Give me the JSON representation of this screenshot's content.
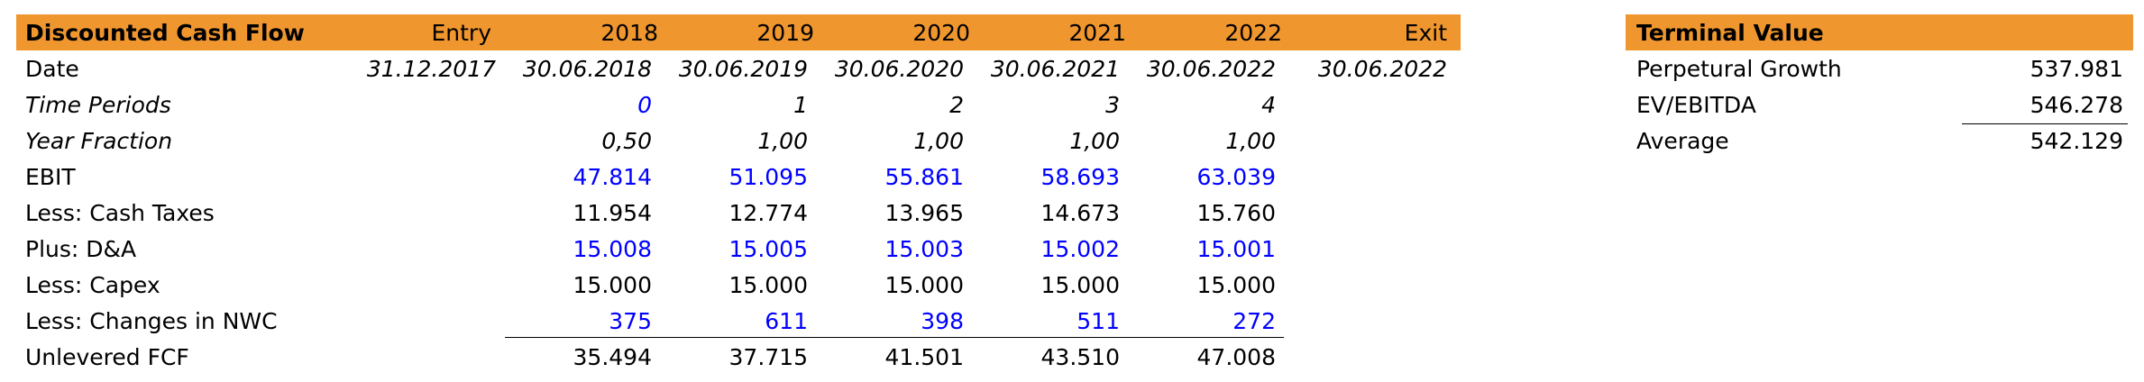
{
  "colors": {
    "header_bg": "#F0962E",
    "input_blue": "#0000FF",
    "text": "#000000"
  },
  "dcf": {
    "header": [
      "Discounted Cash Flow",
      "Entry",
      "2018",
      "2019",
      "2020",
      "2021",
      "2022",
      "Exit"
    ],
    "rows": [
      {
        "label": "Date",
        "label_italic": false,
        "value_italic": true,
        "values": [
          "31.12.2017",
          "30.06.2018",
          "30.06.2019",
          "30.06.2020",
          "30.06.2021",
          "30.06.2022",
          "30.06.2022"
        ],
        "blue": [
          false,
          false,
          false,
          false,
          false,
          false,
          false
        ]
      },
      {
        "label": "Time Periods",
        "label_italic": true,
        "value_italic": true,
        "values": [
          "",
          "0",
          "1",
          "2",
          "3",
          "4",
          ""
        ],
        "blue": [
          false,
          true,
          false,
          false,
          false,
          false,
          false
        ]
      },
      {
        "label": "Year Fraction",
        "label_italic": true,
        "value_italic": true,
        "values": [
          "",
          "0,50",
          "1,00",
          "1,00",
          "1,00",
          "1,00",
          ""
        ],
        "blue": [
          false,
          false,
          false,
          false,
          false,
          false,
          false
        ]
      },
      {
        "label": "EBIT",
        "label_italic": false,
        "value_italic": false,
        "values": [
          "",
          "47.814",
          "51.095",
          "55.861",
          "58.693",
          "63.039",
          ""
        ],
        "blue": [
          false,
          true,
          true,
          true,
          true,
          true,
          false
        ]
      },
      {
        "label": "Less: Cash Taxes",
        "label_italic": false,
        "value_italic": false,
        "values": [
          "",
          "11.954",
          "12.774",
          "13.965",
          "14.673",
          "15.760",
          ""
        ],
        "blue": [
          false,
          false,
          false,
          false,
          false,
          false,
          false
        ]
      },
      {
        "label": "Plus: D&A",
        "label_italic": false,
        "value_italic": false,
        "values": [
          "",
          "15.008",
          "15.005",
          "15.003",
          "15.002",
          "15.001",
          ""
        ],
        "blue": [
          false,
          true,
          true,
          true,
          true,
          true,
          false
        ]
      },
      {
        "label": "Less: Capex",
        "label_italic": false,
        "value_italic": false,
        "values": [
          "",
          "15.000",
          "15.000",
          "15.000",
          "15.000",
          "15.000",
          ""
        ],
        "blue": [
          false,
          false,
          false,
          false,
          false,
          false,
          false
        ]
      },
      {
        "label": "Less: Changes in NWC",
        "label_italic": false,
        "value_italic": false,
        "values": [
          "",
          "375",
          "611",
          "398",
          "511",
          "272",
          ""
        ],
        "blue": [
          false,
          true,
          true,
          true,
          true,
          true,
          false
        ]
      },
      {
        "label": "Unlevered FCF",
        "label_italic": false,
        "value_italic": false,
        "values": [
          "",
          "35.494",
          "37.715",
          "41.501",
          "43.510",
          "47.008",
          ""
        ],
        "blue": [
          false,
          false,
          false,
          false,
          false,
          false,
          false
        ]
      }
    ]
  },
  "terminal": {
    "title": "Terminal Value",
    "rows": [
      {
        "label": "Perpetural Growth",
        "value": "537.981"
      },
      {
        "label": "EV/EBITDA",
        "value": "546.278"
      },
      {
        "label": "Average",
        "value": "542.129"
      }
    ]
  }
}
